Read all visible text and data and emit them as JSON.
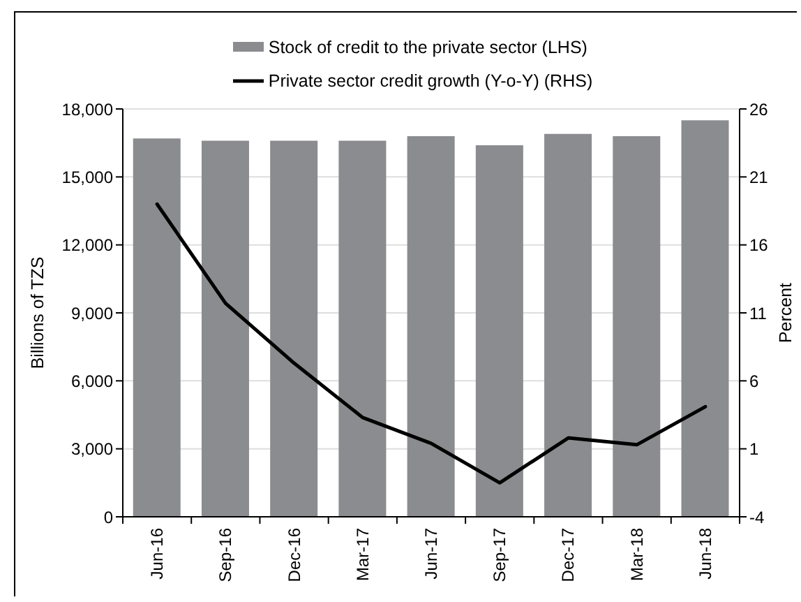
{
  "chart_data": {
    "type": "bar",
    "categories": [
      "Jun-16",
      "Sep-16",
      "Dec-16",
      "Mar-17",
      "Jun-17",
      "Sep-17",
      "Dec-17",
      "Mar-18",
      "Jun-18"
    ],
    "series": [
      {
        "name": "Stock of credit to the private sector (LHS)",
        "color": "#8b8c8f",
        "values": [
          16700,
          16600,
          16600,
          16600,
          16800,
          16400,
          16900,
          16800,
          17500
        ]
      },
      {
        "name": "Private sector credit growth (Y-o-Y) (RHS)",
        "type": "line",
        "axis": "y2",
        "color": "#000000",
        "values": [
          19.0,
          11.7,
          7.3,
          3.3,
          1.4,
          -1.5,
          1.8,
          1.3,
          4.1
        ]
      }
    ],
    "ylabel": "Billions of TZS",
    "y2label": "Percent",
    "ylim": [
      0,
      18000
    ],
    "yticks": [
      0,
      {
        "value": 3000,
        "label": "3,000"
      },
      {
        "value": 6000,
        "label": "6,000"
      },
      {
        "value": 9000,
        "label": "9,000"
      },
      {
        "value": 12000,
        "label": "12,000"
      },
      {
        "value": 15000,
        "label": "15,000"
      },
      {
        "value": 18000,
        "label": "18,000"
      }
    ],
    "y2lim": [
      -4,
      26
    ],
    "y2ticks": [
      -4,
      1,
      6,
      11,
      16,
      21,
      26
    ],
    "grid": "y",
    "legend": "top"
  }
}
